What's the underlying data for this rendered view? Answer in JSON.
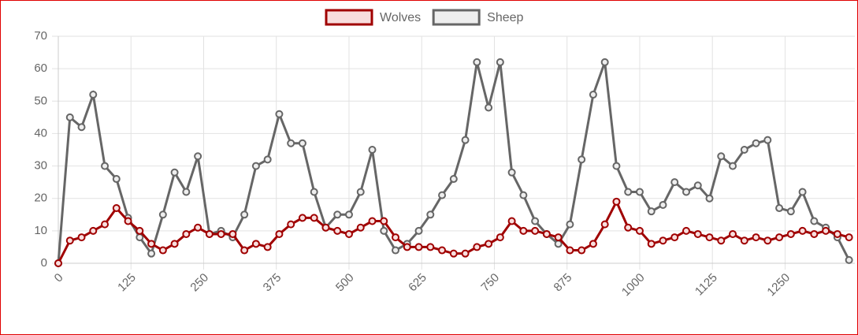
{
  "chart_data": {
    "type": "line",
    "x": [
      0,
      20,
      40,
      60,
      80,
      100,
      120,
      140,
      160,
      180,
      200,
      220,
      240,
      260,
      280,
      300,
      320,
      340,
      360,
      380,
      400,
      420,
      440,
      460,
      480,
      500,
      520,
      540,
      560,
      580,
      600,
      620,
      640,
      660,
      680,
      700,
      720,
      740,
      760,
      780,
      800,
      820,
      840,
      860,
      880,
      900,
      920,
      940,
      960,
      980,
      1000,
      1020,
      1040,
      1060,
      1080,
      1100,
      1120,
      1140,
      1160,
      1180,
      1200,
      1220,
      1240,
      1260,
      1280,
      1300,
      1320,
      1340,
      1360
    ],
    "series": [
      {
        "name": "Wolves",
        "color": "#a00000",
        "fill": "#f8dede",
        "values": [
          0,
          7,
          8,
          10,
          12,
          17,
          13,
          10,
          6,
          4,
          6,
          9,
          11,
          9,
          9,
          9,
          4,
          6,
          5,
          9,
          12,
          14,
          14,
          11,
          10,
          9,
          11,
          13,
          13,
          8,
          5,
          5,
          5,
          4,
          3,
          3,
          5,
          6,
          8,
          13,
          10,
          10,
          9,
          8,
          4,
          4,
          6,
          12,
          19,
          11,
          10,
          6,
          7,
          8,
          10,
          9,
          8,
          7,
          9,
          7,
          8,
          7,
          8,
          9,
          10,
          9,
          10,
          9,
          8
        ]
      },
      {
        "name": "Sheep",
        "color": "#666666",
        "fill": "#eeeeee",
        "values": [
          0,
          45,
          42,
          52,
          30,
          26,
          14,
          8,
          3,
          15,
          28,
          22,
          33,
          9,
          10,
          8,
          15,
          30,
          32,
          46,
          37,
          37,
          22,
          11,
          15,
          15,
          22,
          35,
          10,
          4,
          6,
          10,
          15,
          21,
          26,
          38,
          62,
          48,
          62,
          28,
          21,
          13,
          9,
          6,
          12,
          32,
          52,
          62,
          30,
          22,
          22,
          16,
          18,
          25,
          22,
          24,
          20,
          33,
          30,
          35,
          37,
          38,
          17,
          16,
          22,
          13,
          11,
          8,
          1
        ]
      }
    ],
    "xlim": [
      0,
      1370
    ],
    "xticks": [
      0,
      125,
      250,
      375,
      500,
      625,
      750,
      875,
      1000,
      1125,
      1250
    ],
    "ylim": [
      0,
      70
    ],
    "yticks": [
      0,
      10,
      20,
      30,
      40,
      50,
      60,
      70
    ],
    "grid": true,
    "legend": "top"
  }
}
